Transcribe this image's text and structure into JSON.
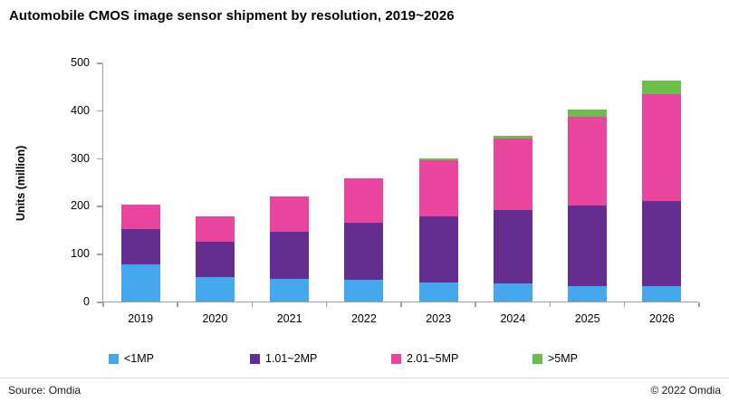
{
  "title": "Automobile CMOS image sensor shipment by resolution, 2019~2026",
  "footer": {
    "source": "Source: Omdia",
    "copyright": "© 2022 Omdia"
  },
  "colors": {
    "axis": "#9aa0a6",
    "series_lt1mp": "#45a7ed",
    "series_1to2mp": "#662d91",
    "series_2to5mp": "#e9449e",
    "series_gt5mp": "#6bbe4a"
  },
  "chart_data": {
    "type": "bar",
    "stacked": true,
    "title": "Automobile CMOS image sensor shipment by resolution, 2019~2026",
    "categories": [
      "2019",
      "2020",
      "2021",
      "2022",
      "2023",
      "2024",
      "2025",
      "2026"
    ],
    "series": [
      {
        "name": "<1MP",
        "color": "#45a7ed",
        "values": [
          78,
          52,
          48,
          45,
          40,
          38,
          32,
          32
        ]
      },
      {
        "name": "1.01~2MP",
        "color": "#662d91",
        "values": [
          73,
          73,
          97,
          119,
          139,
          154,
          168,
          178
        ]
      },
      {
        "name": "2.01~5MP",
        "color": "#e9449e",
        "values": [
          52,
          53,
          74,
          93,
          117,
          149,
          186,
          224
        ]
      },
      {
        "name": ">5MP",
        "color": "#6bbe4a",
        "values": [
          0,
          0,
          0,
          0,
          4,
          6,
          16,
          28
        ]
      }
    ],
    "xlabel": "",
    "ylabel": "Units (million)",
    "ylim": [
      0,
      500
    ],
    "ytick_step": 100,
    "yticks": [
      0,
      100,
      200,
      300,
      400,
      500
    ],
    "grid": false,
    "legend_position": "bottom"
  }
}
